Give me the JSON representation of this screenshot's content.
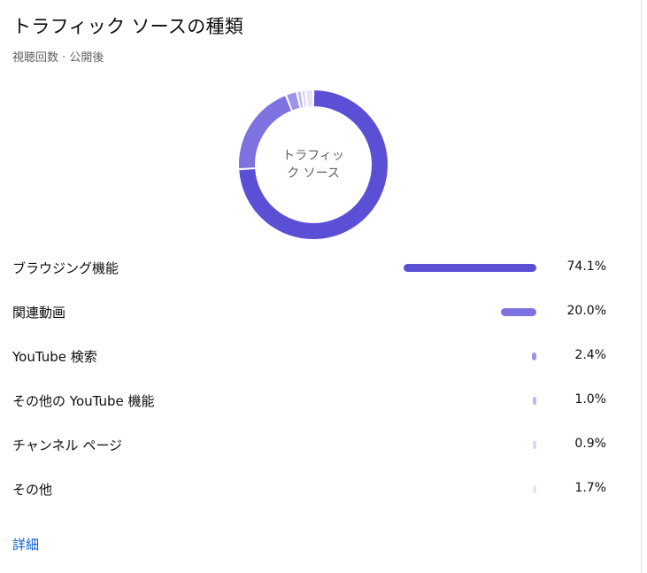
{
  "card": {
    "title": "トラフィック ソースの種類",
    "subtitle": "視聴回数 · 公開後",
    "donut_center_label": "トラフィック ソース",
    "details_link": "詳細"
  },
  "chart_data": {
    "type": "donut",
    "title": "トラフィック ソースの種類",
    "subtitle": "視聴回数 · 公開後",
    "center_label": "トラフィック ソース",
    "unit": "%",
    "categories": [
      "ブラウジング機能",
      "関連動画",
      "YouTube 検索",
      "その他の YouTube 機能",
      "チャンネル ページ",
      "その他"
    ],
    "values": [
      74.1,
      20.0,
      2.4,
      1.0,
      0.9,
      1.7
    ],
    "value_labels": [
      "74.1%",
      "20.0%",
      "2.4%",
      "1.0%",
      "0.9%",
      "1.7%"
    ],
    "colors": [
      "#5b4fd6",
      "#7d72e0",
      "#9c94e8",
      "#bdb8f0",
      "#d9d6f6",
      "#e6e4f9"
    ]
  }
}
